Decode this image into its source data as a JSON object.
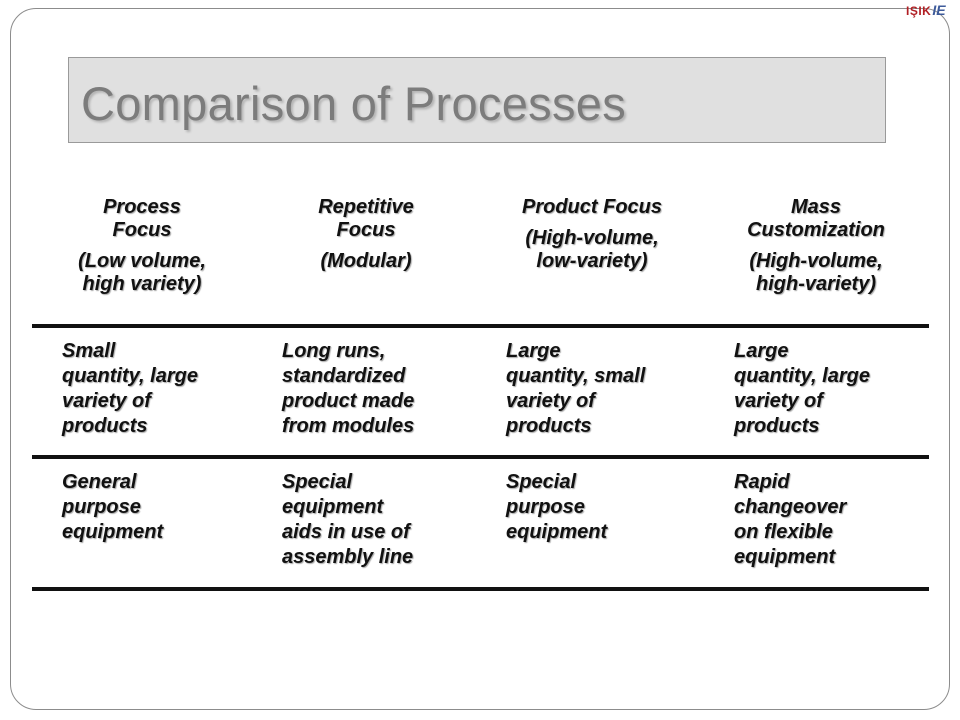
{
  "logo": {
    "brand": "IŞIK",
    "dept": "IE"
  },
  "title": "Comparison of Processes",
  "columns": [
    {
      "name": "Process\nFocus",
      "sub": "(Low volume,\nhigh variety)"
    },
    {
      "name": "Repetitive\nFocus",
      "sub": "(Modular)"
    },
    {
      "name": "Product Focus",
      "sub": "(High-volume,\nlow-variety)"
    },
    {
      "name": "Mass\nCustomization",
      "sub": "(High-volume,\nhigh-variety)"
    }
  ],
  "rows": [
    {
      "cells": [
        "Small\nquantity, large\nvariety of\nproducts",
        "Long runs,\nstandardized\nproduct made\nfrom modules",
        "Large\nquantity, small\nvariety of\nproducts",
        "Large\nquantity, large\nvariety of\nproducts"
      ]
    },
    {
      "cells": [
        "General\npurpose\nequipment",
        "Special\nequipment\naids in use of\nassembly line",
        "Special\npurpose\nequipment",
        "Rapid\nchangeover\non flexible\nequipment"
      ]
    }
  ]
}
